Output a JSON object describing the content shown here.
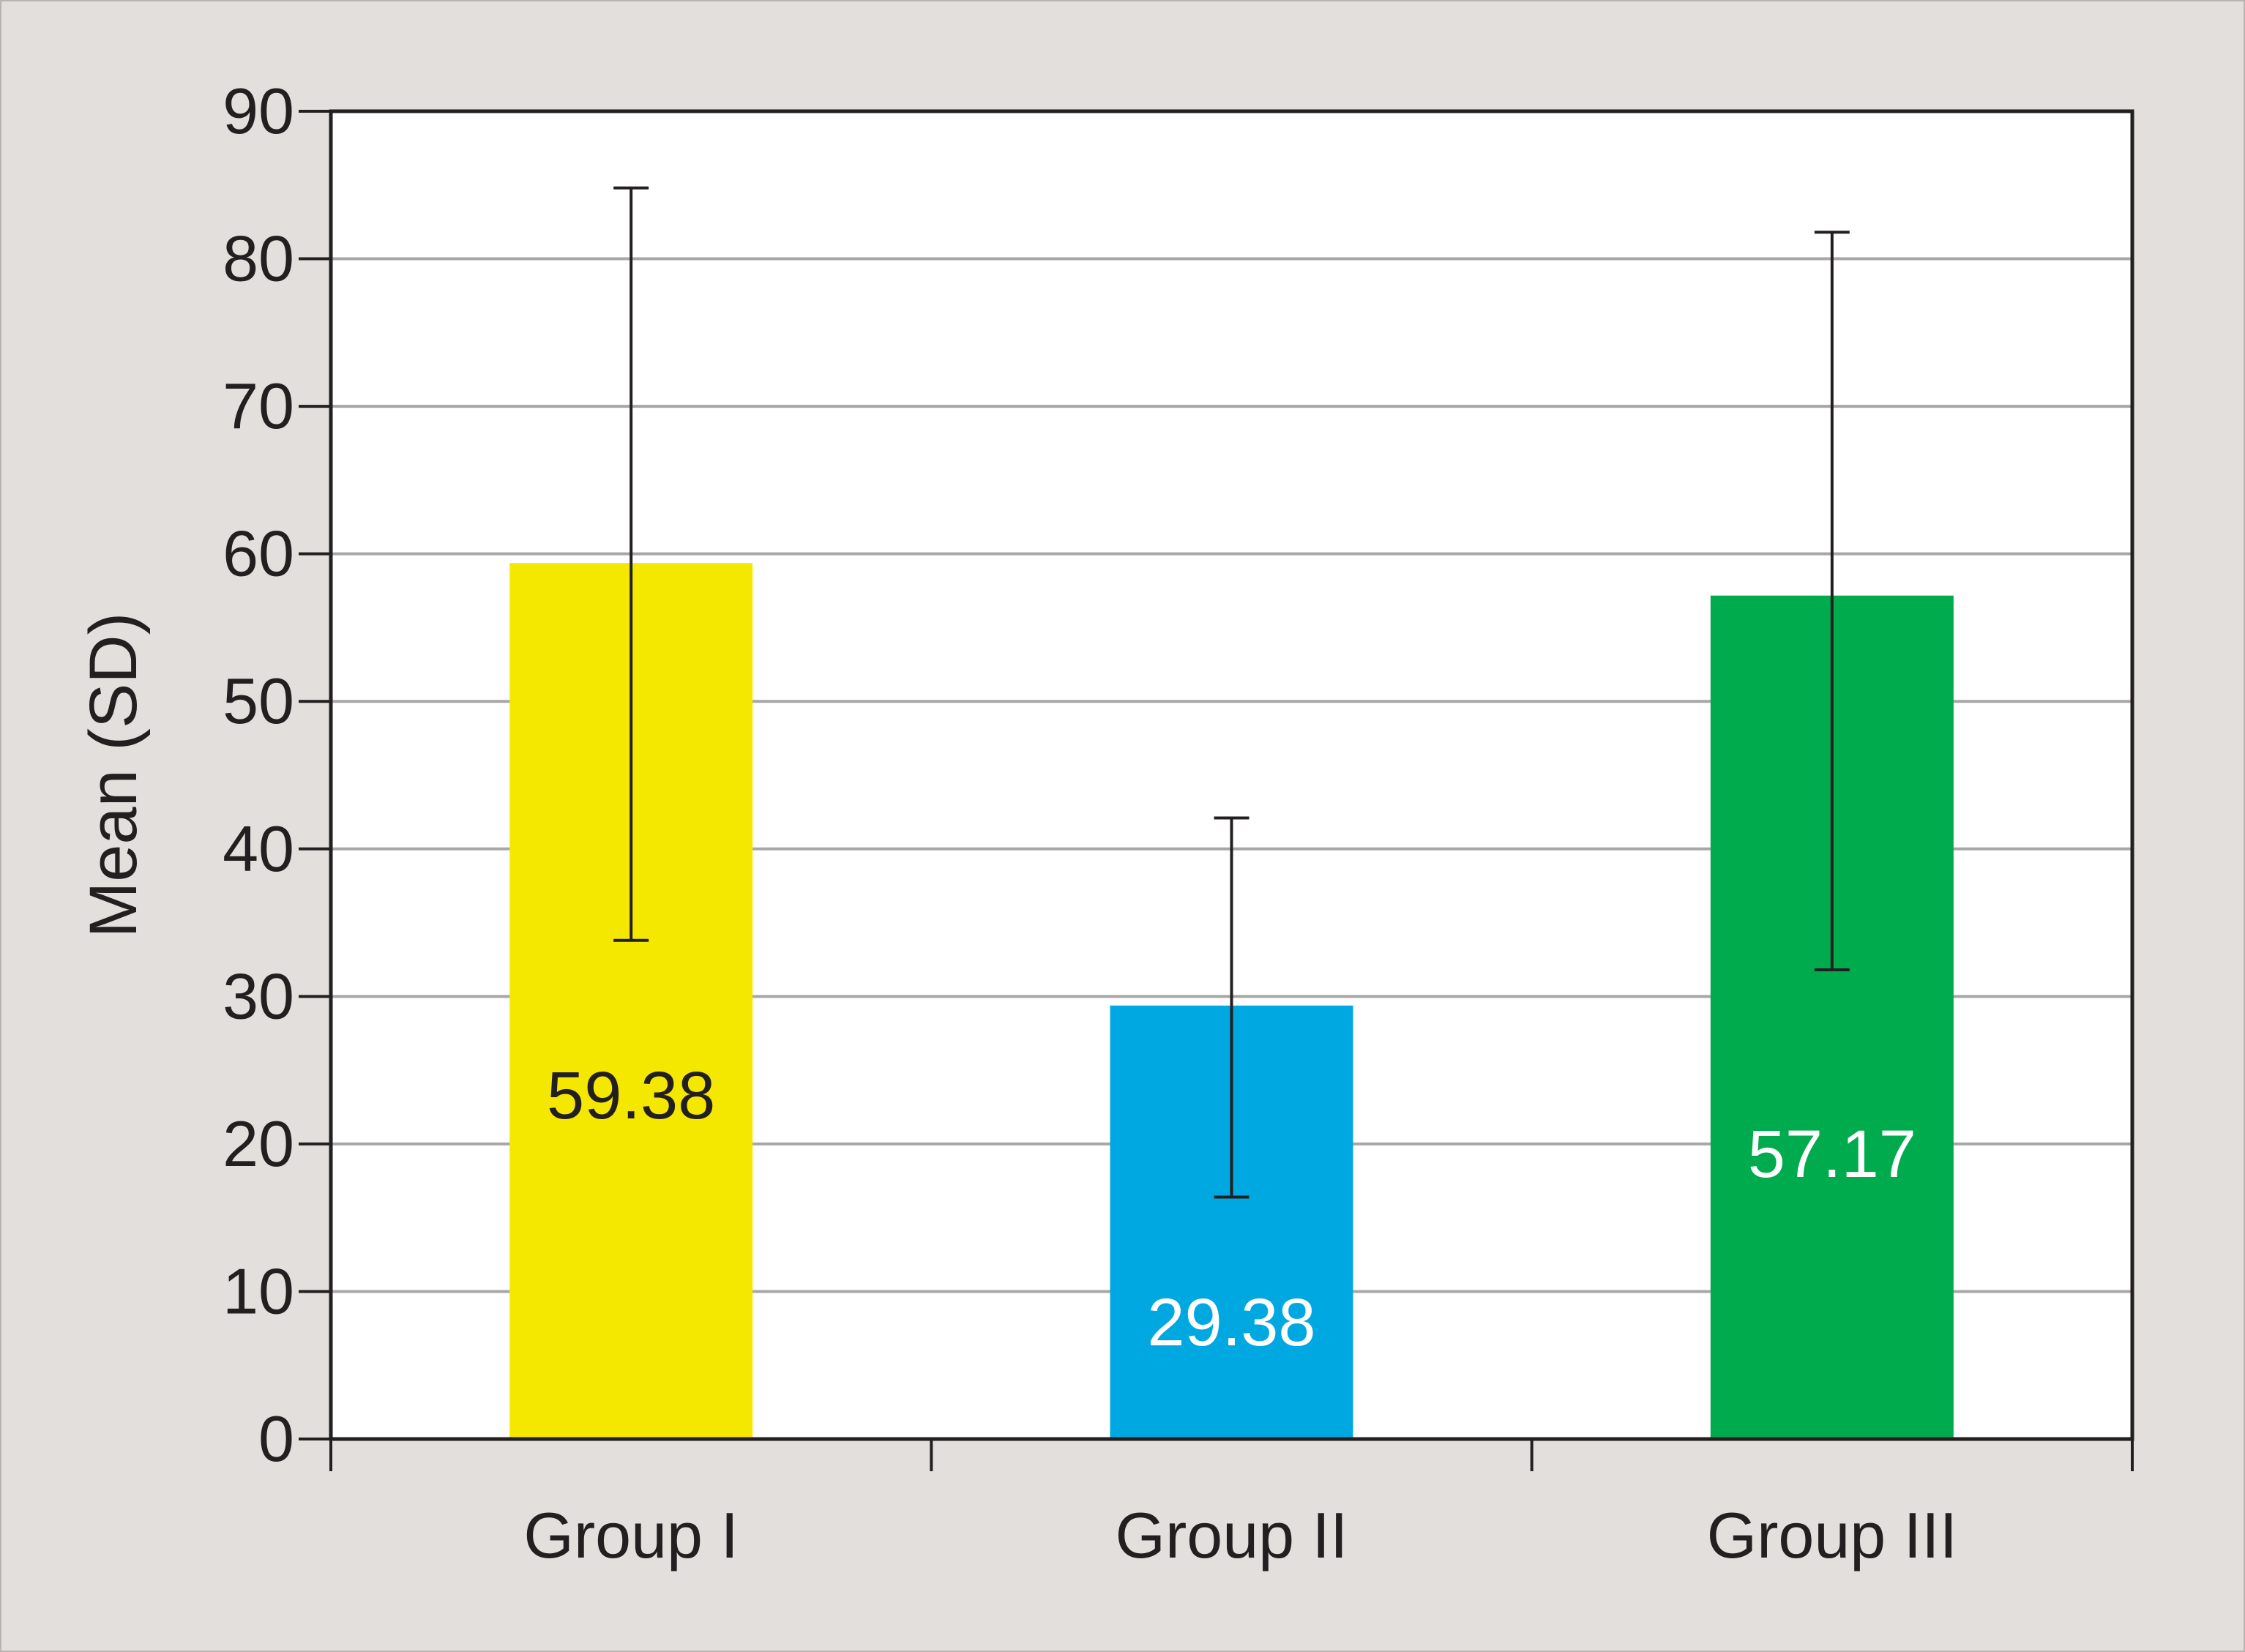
{
  "chart_data": {
    "type": "bar",
    "title": "",
    "xlabel": "",
    "ylabel": "Mean (SD)",
    "ylim": [
      0,
      90
    ],
    "yticks": [
      0,
      10,
      20,
      30,
      40,
      50,
      60,
      70,
      80,
      90
    ],
    "grid": true,
    "legend": "none",
    "categories": [
      "Group I",
      "Group II",
      "Group III"
    ],
    "values": [
      59.38,
      29.38,
      57.17
    ],
    "value_labels": [
      "59.38",
      "29.38",
      "57.17"
    ],
    "error_bars": [
      {
        "low": 33.8,
        "high": 84.8
      },
      {
        "low": 16.4,
        "high": 42.1
      },
      {
        "low": 31.8,
        "high": 81.8
      }
    ],
    "colors": [
      "#f5e800",
      "#00a8e1",
      "#00ab4e"
    ],
    "value_label_colors": [
      "#231f20",
      "#ffffff",
      "#ffffff"
    ]
  }
}
